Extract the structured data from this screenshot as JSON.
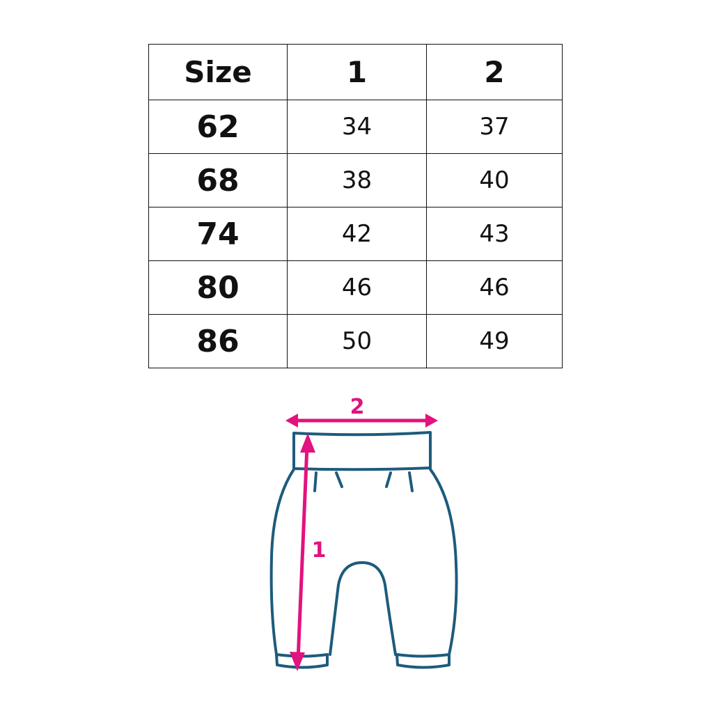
{
  "table": {
    "headers": [
      "Size",
      "1",
      "2"
    ],
    "rows": [
      [
        "62",
        "34",
        "37"
      ],
      [
        "68",
        "38",
        "40"
      ],
      [
        "74",
        "42",
        "43"
      ],
      [
        "80",
        "46",
        "46"
      ],
      [
        "86",
        "50",
        "49"
      ]
    ]
  },
  "diagram": {
    "label_length": "1",
    "label_width": "2",
    "outline_color": "#1d5b7c",
    "arrow_color": "#e2127f"
  }
}
